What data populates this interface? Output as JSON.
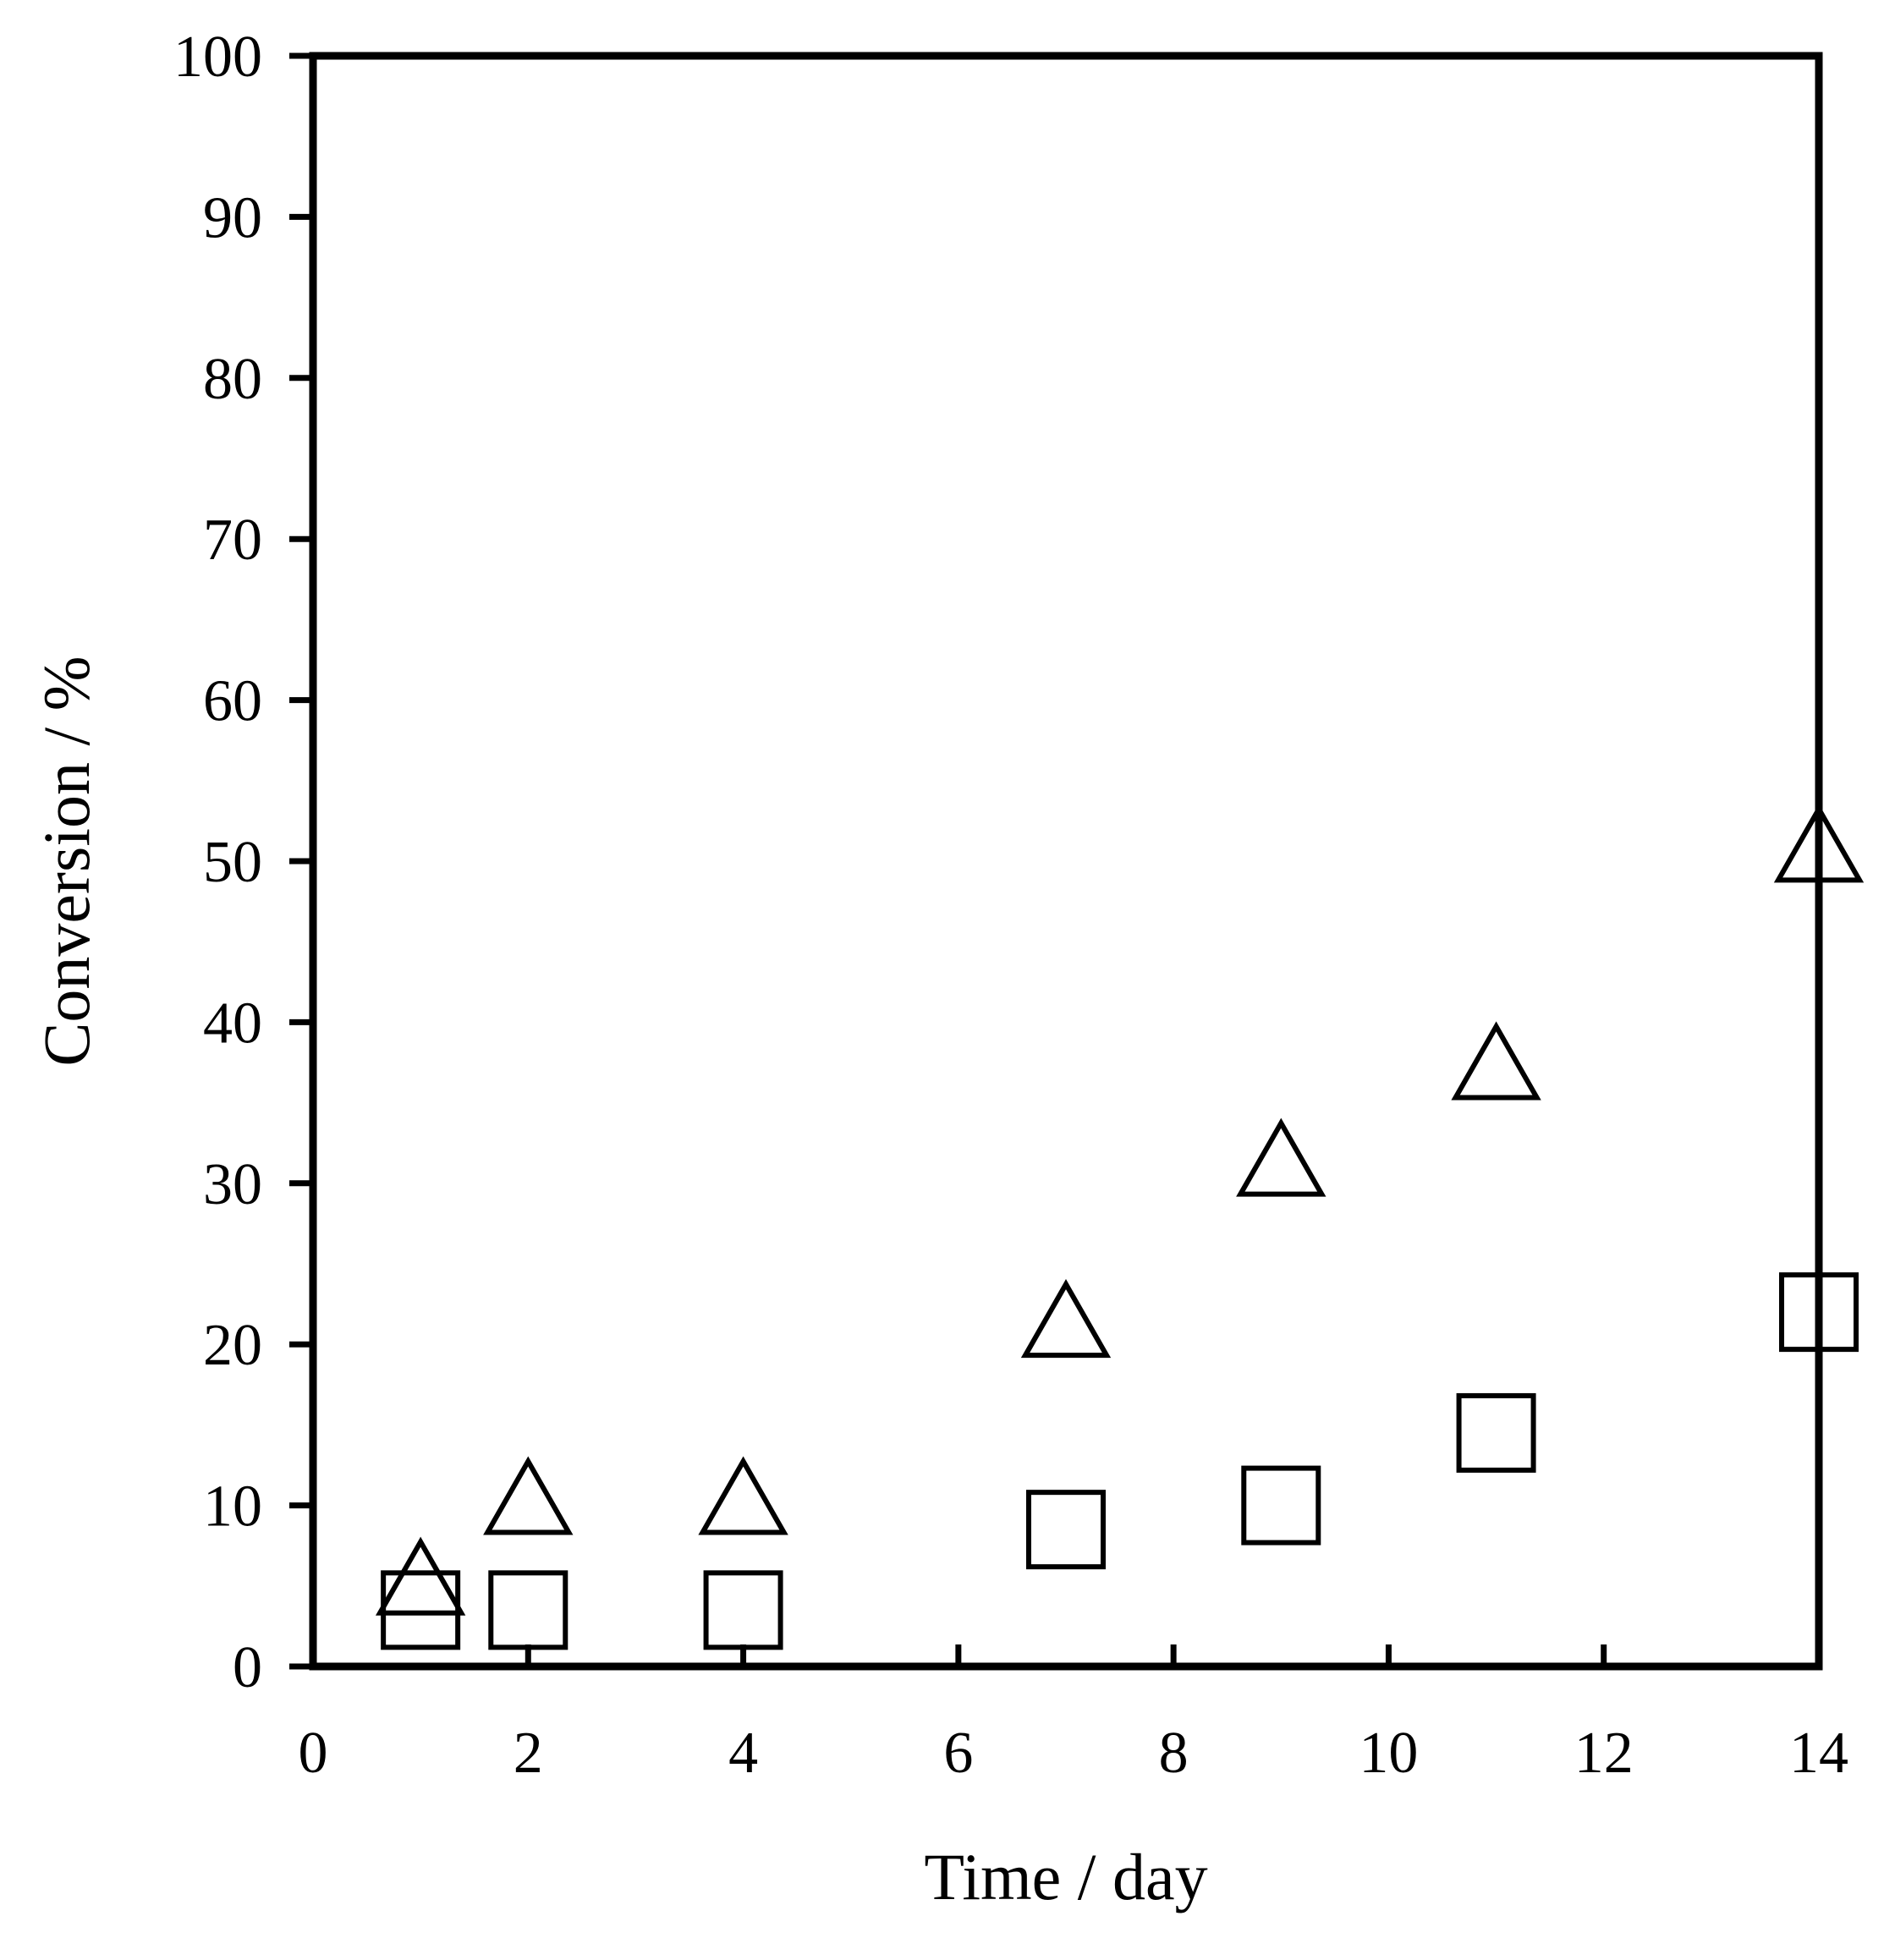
{
  "chart_data": {
    "type": "scatter",
    "title": "",
    "xlabel": "Time / day",
    "ylabel": "Conversion / %",
    "xlim": [
      0,
      14
    ],
    "ylim": [
      0,
      100
    ],
    "xticks": [
      0,
      2,
      4,
      6,
      8,
      10,
      12,
      14
    ],
    "yticks": [
      0,
      10,
      20,
      30,
      40,
      50,
      60,
      70,
      80,
      90,
      100
    ],
    "grid": false,
    "legend": "none",
    "series": [
      {
        "name": "triangle series",
        "marker": "triangle",
        "x": [
          1,
          2,
          4,
          7,
          9,
          11,
          14
        ],
        "y": [
          5,
          10,
          10,
          21,
          31,
          37,
          50.5
        ]
      },
      {
        "name": "square series",
        "marker": "square",
        "x": [
          1,
          2,
          4,
          7,
          9,
          11,
          14
        ],
        "y": [
          3.5,
          3.5,
          3.5,
          8.5,
          10,
          14.5,
          22
        ]
      }
    ]
  },
  "colors": {
    "axis": "#000000",
    "marker_stroke": "#000000",
    "background": "#ffffff"
  }
}
